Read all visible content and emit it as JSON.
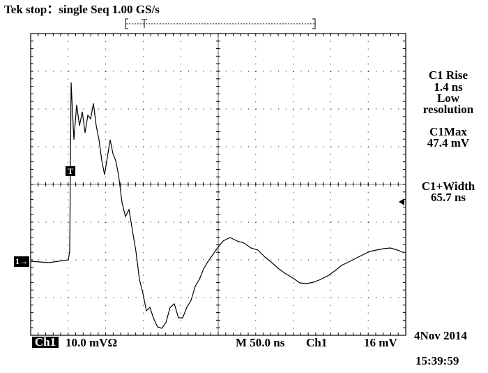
{
  "header": {
    "status": "Tek stop：single Seq  1.00 GS/s"
  },
  "markers": {
    "trigger": "T",
    "channel": "1→"
  },
  "measurements": [
    {
      "label": "C1 Rise",
      "value": "1.4 ns",
      "note1": "Low",
      "note2": "resolution"
    },
    {
      "label": "C1Max",
      "value": "47.4 mV"
    },
    {
      "label": "C1+Width",
      "value": "65.7 ns"
    }
  ],
  "footer": {
    "channel": "Ch1",
    "scale": "10.0 mVΩ",
    "timebase": "M 50.0 ns",
    "trigger_source": "Ch1",
    "trigger_level": "16 mV",
    "date": "4Nov 2014",
    "time": "15:39:59"
  }
}
